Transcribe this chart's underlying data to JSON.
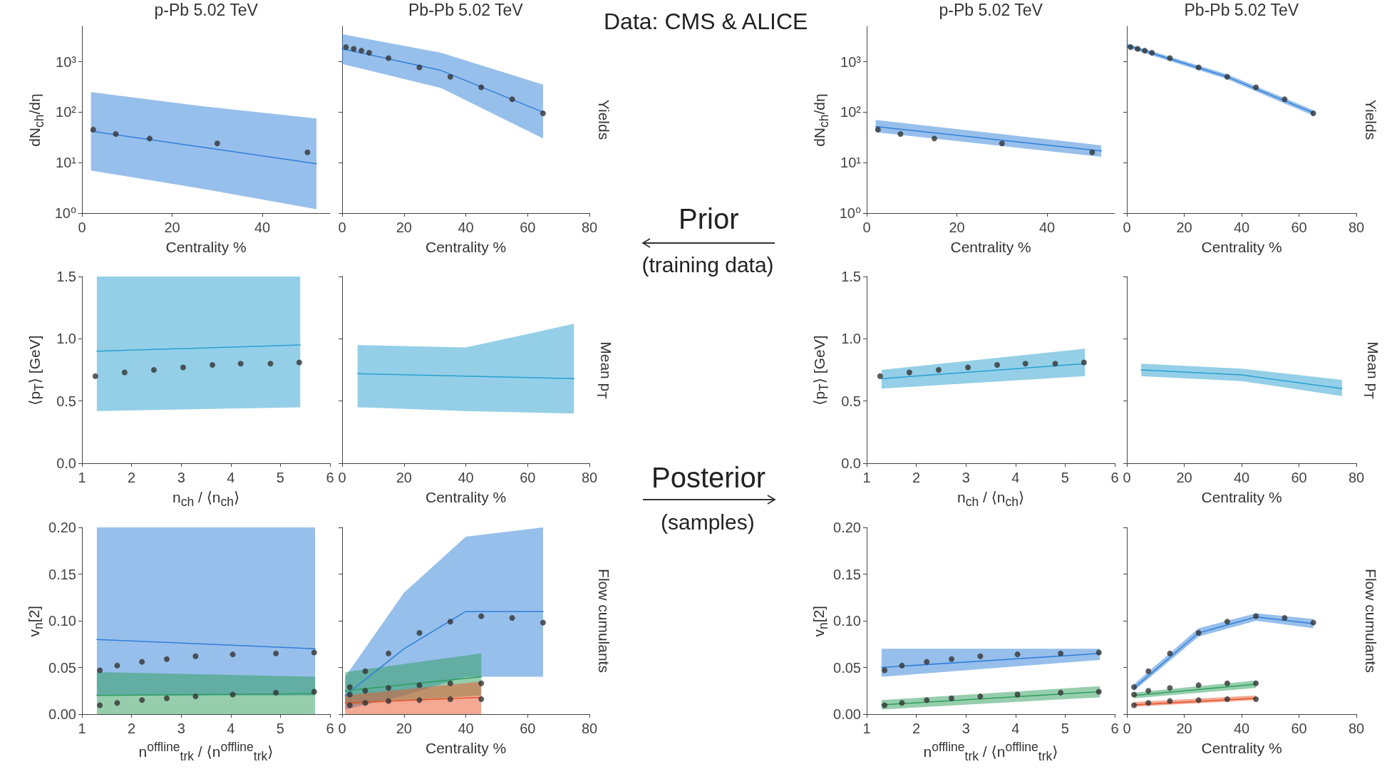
{
  "chart_data": [
    {
      "type": "line",
      "title": "p-Pb 5.02 TeV",
      "xlabel": "Centrality %",
      "ylabel": "dN$_{ch}$/dη",
      "log": "y",
      "xlim": [
        0,
        55
      ],
      "xticks": [
        0,
        20,
        40
      ],
      "ylim": [
        1,
        5000
      ],
      "yticks": [
        {
          "value": 1,
          "label": "10⁰"
        },
        {
          "value": 10,
          "label": "10¹"
        },
        {
          "value": 100,
          "label": "10²"
        },
        {
          "value": 1000,
          "label": "10³"
        }
      ],
      "series": [
        {
          "type": "line",
          "marker": "none",
          "color": "#2f7fd8",
          "x": [
            2,
            27,
            52
          ],
          "values": [
            42,
            20,
            9.5
          ],
          "lower": [
            7,
            3,
            1.2
          ],
          "upper": [
            250,
            130,
            75
          ]
        },
        {
          "type": "scatter",
          "marker": "circle",
          "color": "#333333",
          "x": [
            2.5,
            7.5,
            15,
            30,
            50
          ],
          "values": [
            45,
            37,
            30,
            24,
            16
          ]
        }
      ]
    },
    {
      "type": "line",
      "title": "Pb-Pb 5.02 TeV",
      "xlabel": "Centrality %",
      "y2label": "Yields",
      "log": "y",
      "tick_labels": "x",
      "xlim": [
        0,
        80
      ],
      "xticks": [
        0,
        20,
        40,
        60,
        80
      ],
      "ylim": [
        1,
        5000
      ],
      "yticks": [
        1,
        10,
        100,
        1000
      ],
      "series": [
        {
          "type": "line",
          "marker": "none",
          "color": "#2f7fd8",
          "x": [
            0,
            32,
            65
          ],
          "values": [
            1800,
            670,
            100
          ],
          "lower": [
            900,
            300,
            30
          ],
          "upper": [
            3500,
            1500,
            350
          ]
        },
        {
          "type": "scatter",
          "marker": "circle",
          "color": "#333333",
          "x": [
            1.25,
            3.75,
            6.25,
            8.75,
            15,
            25,
            35,
            45,
            55,
            65
          ],
          "values": [
            1940,
            1800,
            1650,
            1500,
            1180,
            770,
            500,
            310,
            180,
            95
          ]
        }
      ]
    },
    {
      "type": "line",
      "xlabel": "n$_{ch}$ / ⟨n$_{ch}$⟩",
      "ylabel": "⟨p$_{T}$⟩ [GeV]",
      "xlim": [
        1,
        6
      ],
      "xticks": [
        1,
        2,
        3,
        4,
        5,
        6
      ],
      "ylim": [
        0,
        1.5
      ],
      "yticks": [
        {
          "value": 0,
          "label": "0.0"
        },
        {
          "value": 0.5,
          "label": "0.5"
        },
        {
          "value": 1,
          "label": "1.0"
        },
        {
          "value": 1.5,
          "label": "1.5"
        }
      ],
      "series": [
        {
          "type": "line",
          "marker": "none",
          "color": "#2a9fcf",
          "x": [
            1.3,
            5.4
          ],
          "values": [
            0.9,
            0.95
          ],
          "lower": [
            0.42,
            0.45
          ],
          "upper": [
            1.5,
            1.5
          ]
        },
        {
          "type": "scatter",
          "marker": "circle",
          "color": "#333333",
          "x": [
            1.27,
            1.86,
            2.45,
            3.04,
            3.63,
            4.2,
            4.8,
            5.38
          ],
          "values": [
            0.7,
            0.73,
            0.75,
            0.77,
            0.79,
            0.8,
            0.8,
            0.81
          ]
        }
      ]
    },
    {
      "type": "line",
      "xlabel": "Centrality %",
      "y2label": "Mean p$_{T}$",
      "tick_labels": "x",
      "xlim": [
        0,
        80
      ],
      "xticks": [
        0,
        20,
        40,
        60,
        80
      ],
      "ylim": [
        0,
        1.5
      ],
      "yticks": [
        0,
        0.5,
        1,
        1.5
      ],
      "series": [
        {
          "type": "line",
          "marker": "none",
          "color": "#2a9fcf",
          "x": [
            5,
            40,
            75
          ],
          "values": [
            0.72,
            0.7,
            0.68
          ],
          "lower": [
            0.45,
            0.42,
            0.4
          ],
          "upper": [
            0.95,
            0.93,
            1.12
          ]
        }
      ]
    },
    {
      "type": "line",
      "xlabel": "n$^{offline}$$_{trk}$ / ⟨n$^{offline}$$_{trk}$⟩",
      "ylabel": "v$_{n}$[2]",
      "xlim": [
        1,
        6
      ],
      "xticks": [
        1,
        2,
        3,
        4,
        5,
        6
      ],
      "ylim": [
        0,
        0.2
      ],
      "yticks": [
        {
          "value": 0,
          "label": "0.00"
        },
        {
          "value": 0.05,
          "label": "0.05"
        },
        {
          "value": 0.1,
          "label": "0.10"
        },
        {
          "value": 0.15,
          "label": "0.15"
        },
        {
          "value": 0.2,
          "label": "0.20"
        }
      ],
      "series": [
        {
          "type": "line",
          "marker": "none",
          "color": "#2f7fd8",
          "x": [
            1.3,
            5.7
          ],
          "values": [
            0.08,
            0.07
          ],
          "lower": [
            0.02,
            0.02
          ],
          "upper": [
            0.2,
            0.2
          ]
        },
        {
          "type": "line",
          "marker": "none",
          "color": "#2e9e5b",
          "x": [
            1.3,
            5.7
          ],
          "values": [
            0.02,
            0.022
          ],
          "lower": [
            0,
            0
          ],
          "upper": [
            0.045,
            0.04
          ]
        },
        {
          "type": "scatter",
          "marker": "circle",
          "color": "#333333",
          "x": [
            1.36,
            1.71,
            2.21,
            2.71,
            3.29,
            4.04,
            4.91,
            5.68
          ],
          "values": [
            0.047,
            0.052,
            0.056,
            0.059,
            0.062,
            0.064,
            0.065,
            0.066
          ]
        },
        {
          "type": "scatter",
          "marker": "circle",
          "color": "#333333",
          "x": [
            1.36,
            1.71,
            2.21,
            2.71,
            3.29,
            4.04,
            4.91,
            5.68
          ],
          "values": [
            0.0095,
            0.012,
            0.015,
            0.017,
            0.019,
            0.021,
            0.023,
            0.024
          ]
        }
      ]
    },
    {
      "type": "line",
      "xlabel": "Centrality %",
      "y2label": "Flow cumulants",
      "tick_labels": "x",
      "xlim": [
        0,
        80
      ],
      "xticks": [
        0,
        20,
        40,
        60,
        80
      ],
      "ylim": [
        0,
        0.2
      ],
      "yticks": [
        0,
        0.05,
        0.1,
        0.15,
        0.2
      ],
      "series": [
        {
          "type": "line",
          "marker": "none",
          "color": "#2f7fd8",
          "x": [
            1,
            20,
            40,
            65
          ],
          "values": [
            0.02,
            0.07,
            0.11,
            0.11
          ],
          "lower": [
            0.005,
            0.02,
            0.04,
            0.04
          ],
          "upper": [
            0.04,
            0.13,
            0.19,
            0.2
          ]
        },
        {
          "type": "line",
          "marker": "none",
          "color": "#2e9e5b",
          "x": [
            1,
            45
          ],
          "values": [
            0.025,
            0.04
          ],
          "lower": [
            0.01,
            0.02
          ],
          "upper": [
            0.045,
            0.065
          ]
        },
        {
          "type": "line",
          "marker": "none",
          "color": "#e8542a",
          "x": [
            1,
            45
          ],
          "values": [
            0.012,
            0.018
          ],
          "lower": [
            0,
            0
          ],
          "upper": [
            0.02,
            0.035
          ]
        },
        {
          "type": "scatter",
          "marker": "circle",
          "color": "#333333",
          "x": [
            2.5,
            7.5,
            15,
            25,
            35,
            45,
            55,
            65
          ],
          "values": [
            0.029,
            0.046,
            0.065,
            0.087,
            0.099,
            0.105,
            0.103,
            0.098
          ]
        },
        {
          "type": "scatter",
          "marker": "circle",
          "color": "#333333",
          "x": [
            2.5,
            7.5,
            15,
            25,
            35,
            45
          ],
          "values": [
            0.021,
            0.025,
            0.028,
            0.031,
            0.033,
            0.033
          ]
        },
        {
          "type": "scatter",
          "marker": "circle",
          "color": "#333333",
          "x": [
            2.5,
            7.5,
            15,
            25,
            35,
            45
          ],
          "values": [
            0.0095,
            0.012,
            0.014,
            0.015,
            0.016,
            0.016
          ]
        }
      ]
    },
    {
      "type": "line",
      "title": "p-Pb 5.02 TeV",
      "xlabel": "Centrality %",
      "ylabel": "dN$_{ch}$/dη",
      "log": "y",
      "xlim": [
        0,
        55
      ],
      "xticks": [
        0,
        20,
        40
      ],
      "ylim": [
        1,
        5000
      ],
      "yticks": [
        {
          "value": 1,
          "label": "10⁰"
        },
        {
          "value": 10,
          "label": "10¹"
        },
        {
          "value": 100,
          "label": "10²"
        },
        {
          "value": 1000,
          "label": "10³"
        }
      ],
      "series": [
        {
          "type": "line",
          "marker": "none",
          "color": "#2f7fd8",
          "x": [
            2,
            52
          ],
          "values": [
            52,
            17
          ],
          "lower": [
            40,
            13
          ],
          "upper": [
            70,
            22
          ]
        },
        {
          "type": "scatter",
          "marker": "circle",
          "color": "#333333",
          "x": [
            2.5,
            7.5,
            15,
            30,
            50
          ],
          "values": [
            45,
            37,
            30,
            24,
            16
          ]
        }
      ]
    },
    {
      "type": "line",
      "title": "Pb-Pb 5.02 TeV",
      "xlabel": "Centrality %",
      "y2label": "Yields",
      "log": "y",
      "tick_labels": "x",
      "xlim": [
        0,
        80
      ],
      "xticks": [
        0,
        20,
        40,
        60,
        80
      ],
      "ylim": [
        1,
        5000
      ],
      "yticks": [
        1,
        10,
        100,
        1000
      ],
      "series": [
        {
          "type": "line",
          "marker": "none",
          "color": "#2f7fd8",
          "x": [
            0,
            35,
            65
          ],
          "values": [
            2100,
            500,
            97
          ],
          "lower": [
            1900,
            450,
            85
          ],
          "upper": [
            2300,
            560,
            110
          ]
        },
        {
          "type": "scatter",
          "marker": "circle",
          "color": "#333333",
          "x": [
            1.25,
            3.75,
            6.25,
            8.75,
            15,
            25,
            35,
            45,
            55,
            65
          ],
          "values": [
            1940,
            1800,
            1650,
            1500,
            1180,
            770,
            500,
            310,
            180,
            95
          ]
        }
      ]
    },
    {
      "type": "line",
      "xlabel": "n$_{ch}$ / ⟨n$_{ch}$⟩",
      "ylabel": "⟨p$_{T}$⟩ [GeV]",
      "xlim": [
        1,
        6
      ],
      "xticks": [
        1,
        2,
        3,
        4,
        5,
        6
      ],
      "ylim": [
        0,
        1.5
      ],
      "yticks": [
        {
          "value": 0,
          "label": "0.0"
        },
        {
          "value": 0.5,
          "label": "0.5"
        },
        {
          "value": 1,
          "label": "1.0"
        },
        {
          "value": 1.5,
          "label": "1.5"
        }
      ],
      "series": [
        {
          "type": "line",
          "marker": "none",
          "color": "#2a9fcf",
          "x": [
            1.3,
            5.4
          ],
          "values": [
            0.68,
            0.8
          ],
          "lower": [
            0.6,
            0.7
          ],
          "upper": [
            0.75,
            0.92
          ]
        },
        {
          "type": "scatter",
          "marker": "circle",
          "color": "#333333",
          "x": [
            1.27,
            1.86,
            2.45,
            3.04,
            3.63,
            4.2,
            4.8,
            5.38
          ],
          "values": [
            0.7,
            0.73,
            0.75,
            0.77,
            0.79,
            0.8,
            0.8,
            0.81
          ]
        }
      ]
    },
    {
      "type": "line",
      "xlabel": "Centrality %",
      "y2label": "Mean p$_{T}$",
      "tick_labels": "x",
      "xlim": [
        0,
        80
      ],
      "xticks": [
        0,
        20,
        40,
        60,
        80
      ],
      "ylim": [
        0,
        1.5
      ],
      "yticks": [
        0,
        0.5,
        1,
        1.5
      ],
      "series": [
        {
          "type": "line",
          "marker": "none",
          "color": "#2a9fcf",
          "x": [
            5,
            40,
            75
          ],
          "values": [
            0.75,
            0.71,
            0.6
          ],
          "lower": [
            0.7,
            0.66,
            0.54
          ],
          "upper": [
            0.8,
            0.76,
            0.67
          ]
        }
      ]
    },
    {
      "type": "line",
      "xlabel": "n$^{offline}$$_{trk}$ / ⟨n$^{offline}$$_{trk}$⟩",
      "ylabel": "v$_{n}$[2]",
      "xlim": [
        1,
        6
      ],
      "xticks": [
        1,
        2,
        3,
        4,
        5,
        6
      ],
      "ylim": [
        0,
        0.2
      ],
      "yticks": [
        {
          "value": 0,
          "label": "0.00"
        },
        {
          "value": 0.05,
          "label": "0.05"
        },
        {
          "value": 0.1,
          "label": "0.10"
        },
        {
          "value": 0.15,
          "label": "0.15"
        },
        {
          "value": 0.2,
          "label": "0.20"
        }
      ],
      "series": [
        {
          "type": "line",
          "marker": "none",
          "color": "#2f7fd8",
          "x": [
            1.3,
            5.7
          ],
          "values": [
            0.05,
            0.065
          ],
          "lower": [
            0.04,
            0.058
          ],
          "upper": [
            0.07,
            0.07
          ]
        },
        {
          "type": "line",
          "marker": "none",
          "color": "#2e9e5b",
          "x": [
            1.3,
            5.7
          ],
          "values": [
            0.01,
            0.024
          ],
          "lower": [
            0.005,
            0.018
          ],
          "upper": [
            0.015,
            0.03
          ]
        },
        {
          "type": "scatter",
          "marker": "circle",
          "color": "#333333",
          "x": [
            1.36,
            1.71,
            2.21,
            2.71,
            3.29,
            4.04,
            4.91,
            5.68
          ],
          "values": [
            0.047,
            0.052,
            0.056,
            0.059,
            0.062,
            0.064,
            0.065,
            0.066
          ]
        },
        {
          "type": "scatter",
          "marker": "circle",
          "color": "#333333",
          "x": [
            1.36,
            1.71,
            2.21,
            2.71,
            3.29,
            4.04,
            4.91,
            5.68
          ],
          "values": [
            0.0095,
            0.012,
            0.015,
            0.017,
            0.019,
            0.021,
            0.023,
            0.024
          ]
        }
      ]
    },
    {
      "type": "line",
      "xlabel": "Centrality %",
      "y2label": "Flow cumulants",
      "tick_labels": "x",
      "xlim": [
        0,
        80
      ],
      "xticks": [
        0,
        20,
        40,
        60,
        80
      ],
      "ylim": [
        0,
        0.2
      ],
      "yticks": [
        0,
        0.05,
        0.1,
        0.15,
        0.2
      ],
      "series": [
        {
          "type": "line",
          "marker": "none",
          "color": "#2f7fd8",
          "x": [
            2.5,
            25,
            45,
            65
          ],
          "values": [
            0.028,
            0.087,
            0.104,
            0.097
          ],
          "lower": [
            0.025,
            0.083,
            0.1,
            0.092
          ],
          "upper": [
            0.032,
            0.092,
            0.108,
            0.102
          ]
        },
        {
          "type": "line",
          "marker": "none",
          "color": "#2e9e5b",
          "x": [
            2.5,
            45
          ],
          "values": [
            0.02,
            0.032
          ],
          "lower": [
            0.017,
            0.028
          ],
          "upper": [
            0.023,
            0.036
          ]
        },
        {
          "type": "line",
          "marker": "none",
          "color": "#e8542a",
          "x": [
            2.5,
            45
          ],
          "values": [
            0.01,
            0.017
          ],
          "lower": [
            0.008,
            0.015
          ],
          "upper": [
            0.013,
            0.02
          ]
        },
        {
          "type": "scatter",
          "marker": "circle",
          "color": "#333333",
          "x": [
            2.5,
            7.5,
            15,
            25,
            35,
            45,
            55,
            65
          ],
          "values": [
            0.029,
            0.046,
            0.065,
            0.087,
            0.099,
            0.105,
            0.103,
            0.098
          ]
        },
        {
          "type": "scatter",
          "marker": "circle",
          "color": "#333333",
          "x": [
            2.5,
            7.5,
            15,
            25,
            35,
            45
          ],
          "values": [
            0.021,
            0.025,
            0.028,
            0.031,
            0.033,
            0.033
          ]
        },
        {
          "type": "scatter",
          "marker": "circle",
          "color": "#333333",
          "x": [
            2.5,
            7.5,
            15,
            25,
            35,
            45
          ],
          "values": [
            0.0095,
            0.012,
            0.014,
            0.015,
            0.016,
            0.016
          ]
        }
      ]
    },
    {
      "type": "other",
      "annotations": [
        "Data: CMS & ALICE",
        "Prior",
        "(training data)",
        "Posterior",
        "(samples)"
      ]
    }
  ]
}
